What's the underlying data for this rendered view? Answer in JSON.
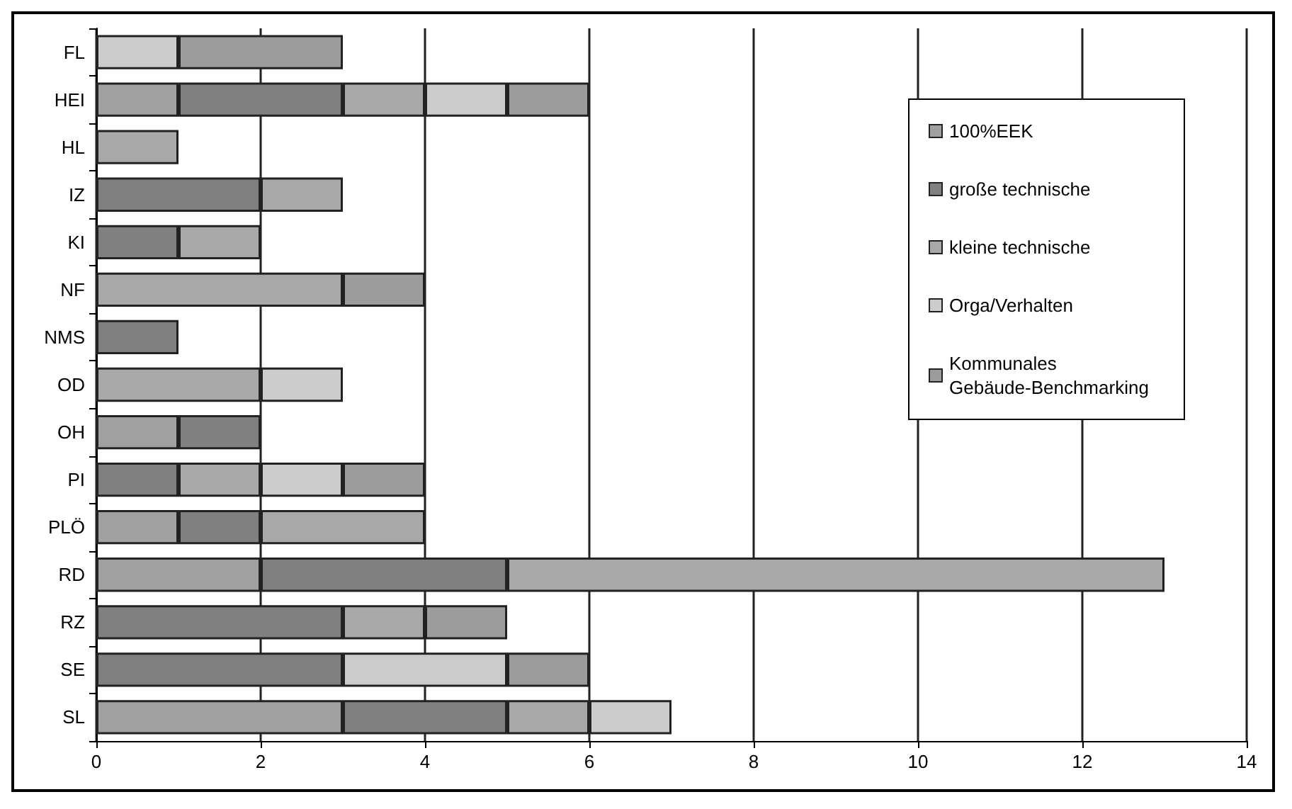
{
  "chart_data": {
    "type": "bar",
    "orientation": "horizontal",
    "stacked": true,
    "categories": [
      "FL",
      "HEI",
      "HL",
      "IZ",
      "KI",
      "NF",
      "NMS",
      "OD",
      "OH",
      "PI",
      "PLÖ",
      "RD",
      "RZ",
      "SE",
      "SL"
    ],
    "series": [
      {
        "name": "100%EEK",
        "color": "#a0a0a0",
        "values": [
          0,
          1,
          0,
          0,
          0,
          0,
          0,
          0,
          1,
          0,
          1,
          2,
          0,
          0,
          3
        ]
      },
      {
        "name": "große technische",
        "color": "#808080",
        "values": [
          0,
          2,
          0,
          2,
          1,
          0,
          1,
          0,
          1,
          1,
          1,
          3,
          3,
          3,
          2
        ]
      },
      {
        "name": "kleine technische",
        "color": "#a8a8a8",
        "values": [
          0,
          1,
          1,
          1,
          1,
          3,
          0,
          2,
          0,
          1,
          2,
          8,
          1,
          0,
          1
        ]
      },
      {
        "name": "Orga/Verhalten",
        "color": "#cccccc",
        "values": [
          1,
          1,
          0,
          0,
          0,
          0,
          0,
          1,
          0,
          1,
          0,
          0,
          0,
          2,
          1
        ]
      },
      {
        "name": "Kommunales Gebäude-Benchmarking",
        "color": "#9c9c9c",
        "values": [
          2,
          1,
          0,
          0,
          0,
          1,
          0,
          0,
          0,
          1,
          0,
          0,
          1,
          1,
          0
        ]
      }
    ],
    "xlim": [
      0,
      14
    ],
    "xticks": [
      0,
      2,
      4,
      6,
      8,
      10,
      12,
      14
    ],
    "grid": "x",
    "legend": "top right"
  }
}
